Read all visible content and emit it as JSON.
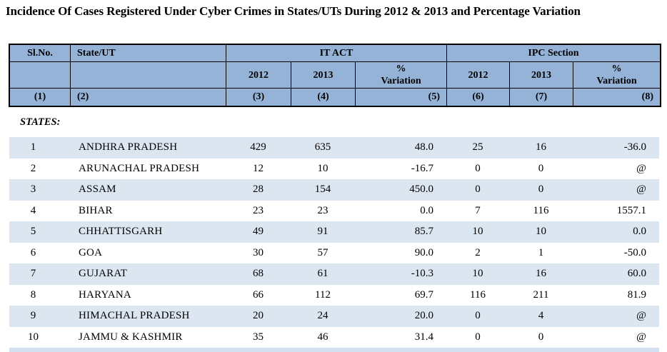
{
  "title": "Incidence Of Cases Registered Under Cyber Crimes in States/UTs During 2012 & 2013 and Percentage Variation",
  "table": {
    "header": {
      "col_slno": "Sl.No.",
      "col_state": "State/UT",
      "group_itact": "IT ACT",
      "group_ipc": "IPC Section",
      "it_2012": "2012",
      "it_2013": "2013",
      "it_pct_variation": "%\nVariation",
      "ipc_2012": "2012",
      "ipc_2013": "2013",
      "ipc_pct_variation": "%\nVariation",
      "nums": [
        "(1)",
        "(2)",
        "(3)",
        "(4)",
        "(5)",
        "(6)",
        "(7)",
        "(8)"
      ]
    },
    "section_label": "STATES:",
    "rows": [
      {
        "sl": "1",
        "state": "ANDHRA PRADESH",
        "it2012": "429",
        "it2013": "635",
        "itvar": "48.0",
        "ipc2012": "25",
        "ipc2013": "16",
        "ipcvar": "-36.0"
      },
      {
        "sl": "2",
        "state": "ARUNACHAL PRADESH",
        "it2012": "12",
        "it2013": "10",
        "itvar": "-16.7",
        "ipc2012": "0",
        "ipc2013": "0",
        "ipcvar": "@"
      },
      {
        "sl": "3",
        "state": "ASSAM",
        "it2012": "28",
        "it2013": "154",
        "itvar": "450.0",
        "ipc2012": "0",
        "ipc2013": "0",
        "ipcvar": "@"
      },
      {
        "sl": "4",
        "state": "BIHAR",
        "it2012": "23",
        "it2013": "23",
        "itvar": "0.0",
        "ipc2012": "7",
        "ipc2013": "116",
        "ipcvar": "1557.1"
      },
      {
        "sl": "5",
        "state": "CHHATTISGARH",
        "it2012": "49",
        "it2013": "91",
        "itvar": "85.7",
        "ipc2012": "10",
        "ipc2013": "10",
        "ipcvar": "0.0"
      },
      {
        "sl": "6",
        "state": "GOA",
        "it2012": "30",
        "it2013": "57",
        "itvar": "90.0",
        "ipc2012": "2",
        "ipc2013": "1",
        "ipcvar": "-50.0"
      },
      {
        "sl": "7",
        "state": "GUJARAT",
        "it2012": "68",
        "it2013": "61",
        "itvar": "-10.3",
        "ipc2012": "10",
        "ipc2013": "16",
        "ipcvar": "60.0"
      },
      {
        "sl": "8",
        "state": "HARYANA",
        "it2012": "66",
        "it2013": "112",
        "itvar": "69.7",
        "ipc2012": "116",
        "ipc2013": "211",
        "ipcvar": "81.9"
      },
      {
        "sl": "9",
        "state": "HIMACHAL PRADESH",
        "it2012": "20",
        "it2013": "24",
        "itvar": "20.0",
        "ipc2012": "0",
        "ipc2013": "4",
        "ipcvar": "@"
      },
      {
        "sl": "10",
        "state": "JAMMU & KASHMIR",
        "it2012": "35",
        "it2013": "46",
        "itvar": "31.4",
        "ipc2012": "0",
        "ipc2013": "0",
        "ipcvar": "@"
      }
    ]
  },
  "colors": {
    "header_bg": "#95b3d7",
    "row_alt_bg": "#dce6f1",
    "partial_row_bg": "#d2dfef",
    "border_color": "#000000",
    "text_color": "#000000"
  }
}
